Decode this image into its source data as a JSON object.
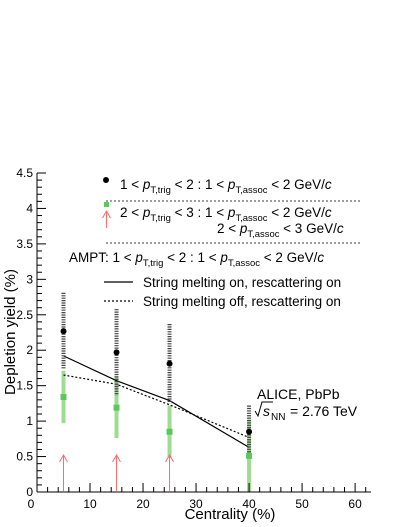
{
  "chart_data": {
    "type": "scatter",
    "xlabel": "Centrality (%)",
    "ylabel": "Depletion yield (%)",
    "xlim": [
      0,
      63
    ],
    "ylim": [
      0,
      4.5
    ],
    "xticks": [
      "10",
      "20",
      "30",
      "40",
      "50",
      "60"
    ],
    "yticks": [
      "0",
      "0.5",
      "1",
      "1.5",
      "2",
      "2.5",
      "3",
      "3.5",
      "4",
      "4.5"
    ],
    "grid": false,
    "legend_position": "top",
    "colors": {
      "black": "#000000",
      "green": "#5cc85c",
      "green_sys": "#9fdc8f",
      "red": "#ff6b6b"
    },
    "series": [
      {
        "legend_parts": [
          "1 < ",
          "p",
          "T,trig",
          " < 2 : 1 < ",
          "p",
          "T,assoc",
          " < 2 GeV/",
          "c"
        ],
        "x": [
          5,
          15,
          25,
          40
        ],
        "y": [
          2.27,
          1.97,
          1.81,
          0.85
        ],
        "err_low": [
          0.54,
          0.61,
          0.56,
          0.37
        ],
        "err_high": [
          0.54,
          0.61,
          0.56,
          0.37
        ]
      },
      {
        "legend_parts_line1": [
          "2 < ",
          "p",
          "T,trig",
          " < 3 : 1 < ",
          "p",
          "T,assoc",
          " < 2 GeV/",
          "c"
        ],
        "legend_parts_line2": [
          "2 < ",
          "p",
          "T,assoc",
          " < 3 GeV/",
          "c"
        ],
        "x": [
          5,
          15,
          25,
          40
        ],
        "y": [
          1.34,
          1.19,
          0.85,
          0.51
        ],
        "err_low": [
          0.37,
          0.43,
          0.37,
          0.51
        ],
        "err_high": [
          0.37,
          0.43,
          0.37,
          0.51
        ],
        "upper_limit_x": [
          5,
          15,
          25
        ]
      }
    ],
    "ampt_header_parts": [
      "AMPT: 1 < ",
      "p",
      "T,trig",
      " < 2 : 1 < ",
      "p",
      "T,assoc",
      " < 2 GeV/",
      "c"
    ],
    "models": [
      {
        "name": "String melting on, rescattering on",
        "style": "solid",
        "x": [
          5,
          15,
          25,
          40
        ],
        "y": [
          1.92,
          1.57,
          1.29,
          0.63
        ]
      },
      {
        "name": "String melting off, rescattering on",
        "style": "dotted",
        "x": [
          5,
          15,
          25,
          40
        ],
        "y": [
          1.65,
          1.52,
          1.23,
          0.77
        ]
      }
    ],
    "annotation_line1": "ALICE, PbPb",
    "annotation_line2_value": "= 2.76 TeV",
    "annotation_sqrt": "s",
    "annotation_sub": "NN"
  }
}
